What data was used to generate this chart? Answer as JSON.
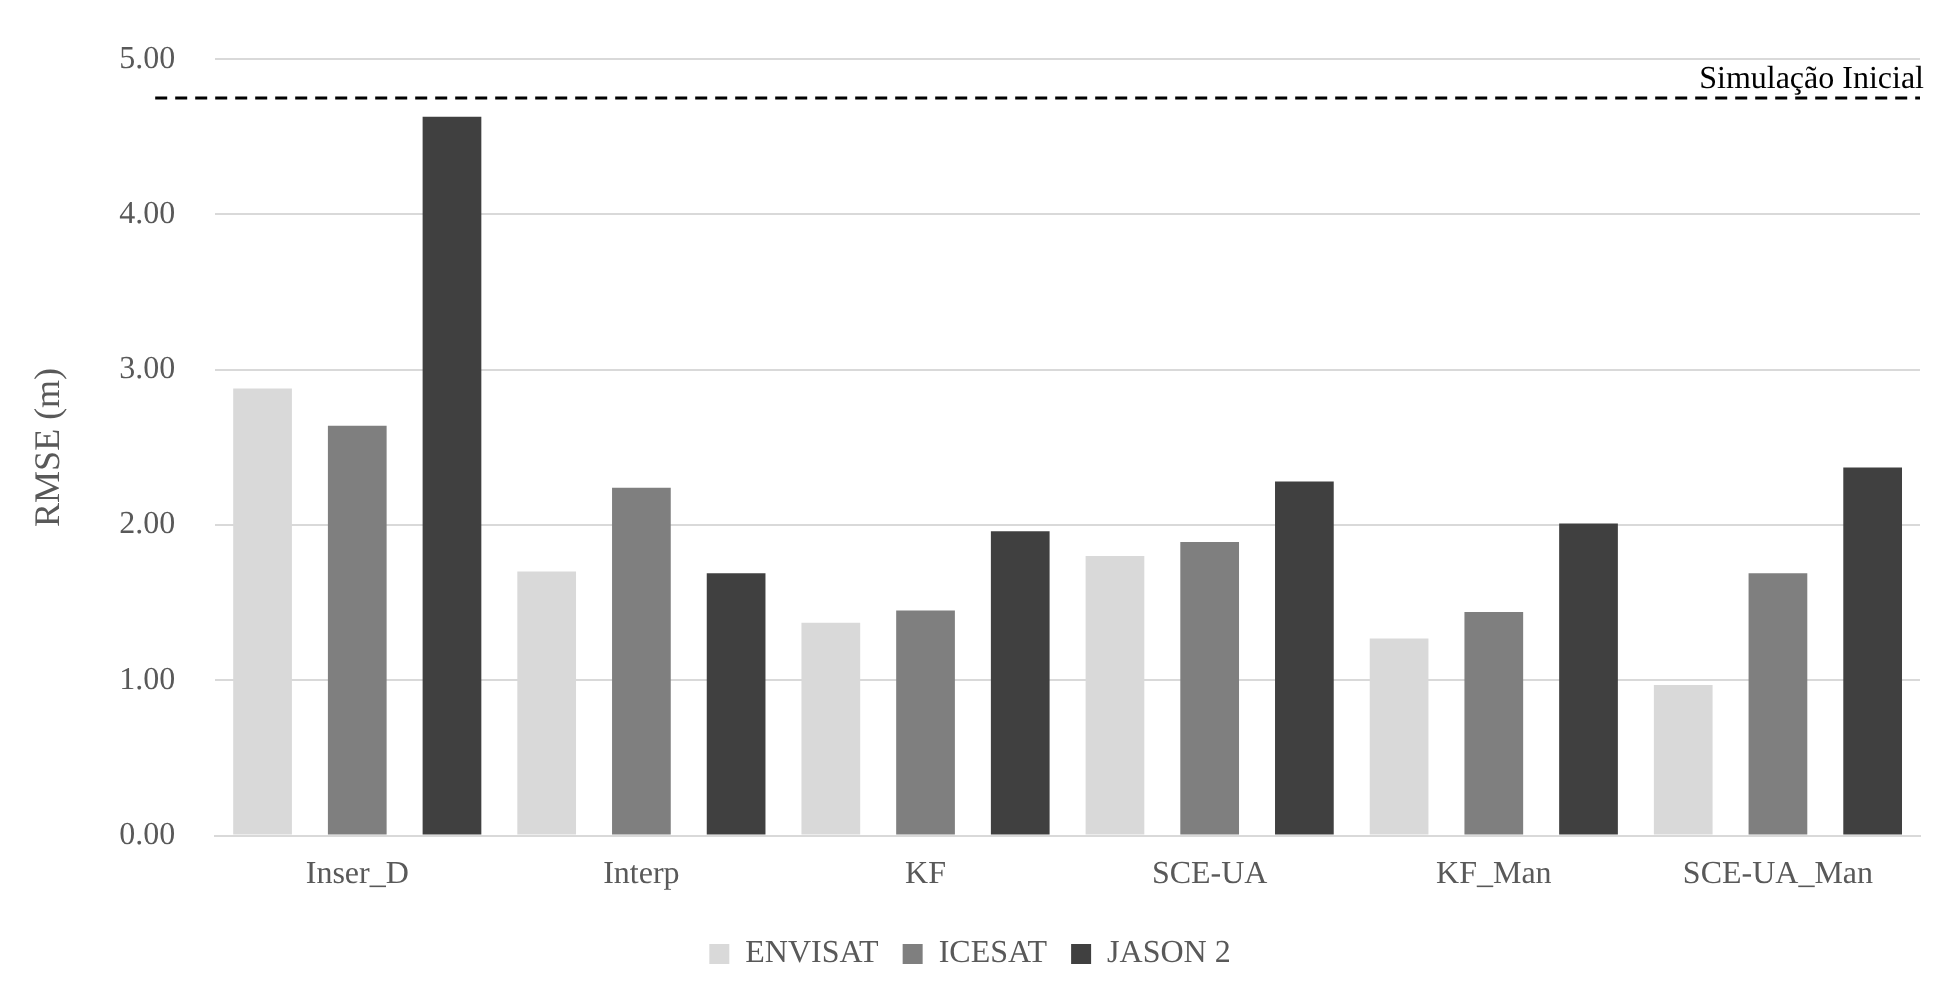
{
  "chart_data": {
    "type": "bar",
    "ylabel": "RMSE (m)",
    "categories": [
      "Inser_D",
      "Interp",
      "KF",
      "SCE-UA",
      "KF_Man",
      "SCE-UA_Man"
    ],
    "series": [
      {
        "name": "ENVISAT",
        "color": "#d9d9d9",
        "values": [
          2.88,
          1.7,
          1.37,
          1.8,
          1.27,
          0.97
        ]
      },
      {
        "name": "ICESAT",
        "color": "#7f7f7f",
        "values": [
          2.64,
          2.24,
          1.45,
          1.89,
          1.44,
          1.69
        ]
      },
      {
        "name": "JASON 2",
        "color": "#404040",
        "values": [
          4.63,
          1.69,
          1.96,
          2.28,
          2.01,
          2.37
        ]
      }
    ],
    "ylim": [
      0,
      5
    ],
    "yticks": [
      {
        "value": 0,
        "label": "0.00"
      },
      {
        "value": 1,
        "label": "1.00"
      },
      {
        "value": 2,
        "label": "2.00"
      },
      {
        "value": 3,
        "label": "3.00"
      },
      {
        "value": 4,
        "label": "4.00"
      },
      {
        "value": 5,
        "label": "5.00"
      }
    ],
    "grid": "y",
    "legend": "bottom",
    "ref_lines": [
      {
        "axis": "y",
        "value": 4.75,
        "label": "Simulação Inicial",
        "color": "#000000",
        "line_style": "dashed"
      }
    ]
  }
}
